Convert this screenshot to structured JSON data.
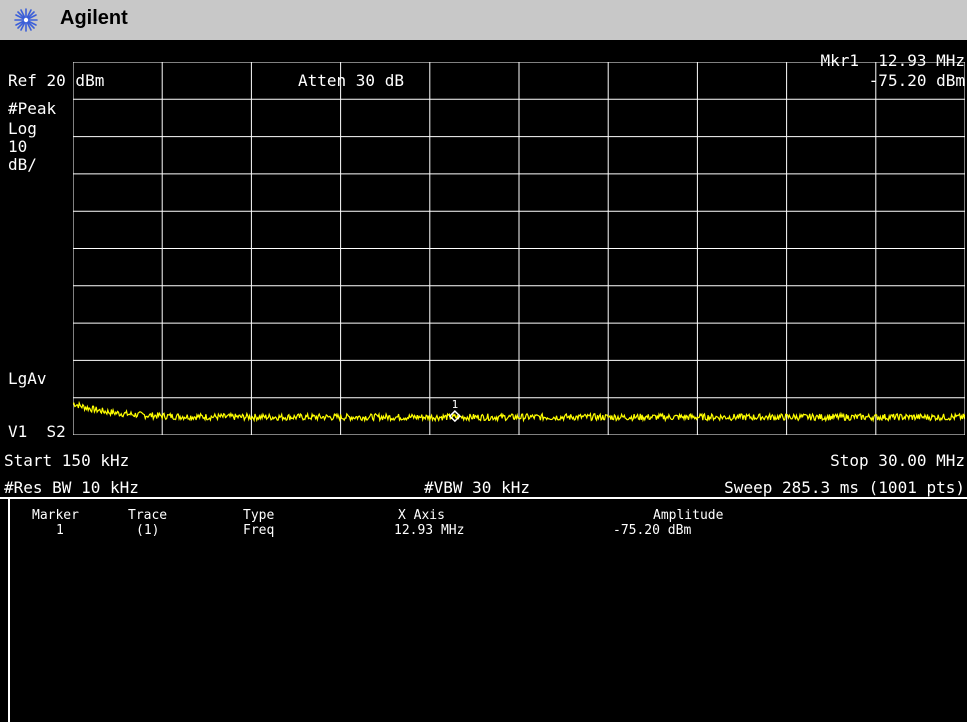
{
  "title": {
    "brand": "Agilent"
  },
  "header": {
    "ref_level": "Ref 20 dBm",
    "atten": "Atten 30 dB",
    "marker_label": "Mkr1  12.93 MHz",
    "marker_amplitude": "-75.20 dBm"
  },
  "left_annotations": {
    "detector": "#Peak",
    "scale_type": "Log",
    "scale_value": "10",
    "scale_unit": "dB/",
    "averaging": "LgAv",
    "trace_status": "V1  S2"
  },
  "footer": {
    "start": "Start 150 kHz",
    "stop": "Stop 30.00 MHz",
    "res_bw": "#Res BW 10 kHz",
    "vbw": "#VBW 30 kHz",
    "sweep": "Sweep 285.3 ms (1001 pts)"
  },
  "marker_table": {
    "headers": [
      "Marker",
      "Trace",
      "Type",
      "X Axis",
      "Amplitude"
    ],
    "rows": [
      [
        "1",
        "(1)",
        "Freq",
        "12.93 MHz",
        "-75.20 dBm"
      ]
    ]
  },
  "chart_data": {
    "type": "line",
    "x_range_mhz": [
      0.15,
      30.0
    ],
    "y_range_dbm": [
      -80,
      20
    ],
    "y_scale": "log 10 dB/div",
    "grid": true,
    "series": [
      {
        "color": "#ffff00",
        "start_dbm": -71.5,
        "floor_dbm": -75.2,
        "noise_db": 0.9
      }
    ],
    "markers": [
      {
        "label": "1",
        "x_mhz": 12.93,
        "y_dbm": -75.2
      }
    ]
  },
  "colors": {
    "trace": "#ffff00",
    "grid": "#ffffff",
    "background": "#000000",
    "titlebar": "#c8c8c8"
  }
}
